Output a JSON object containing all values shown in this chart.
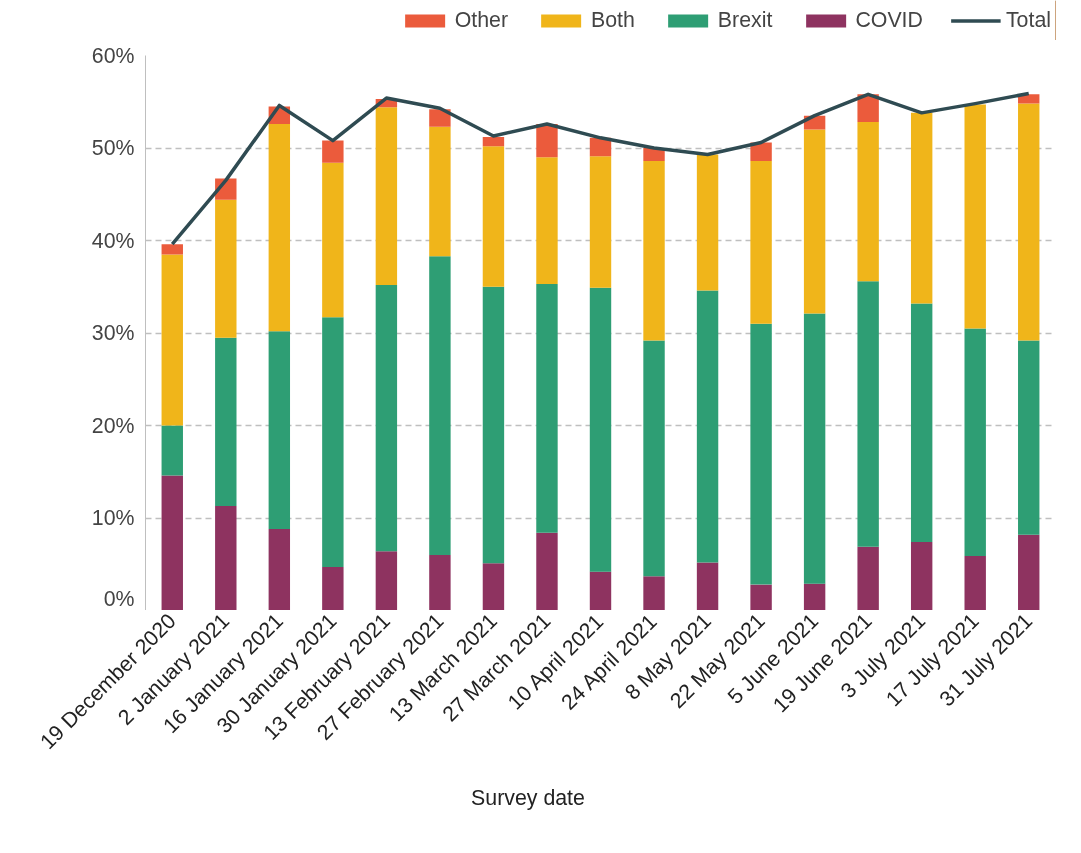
{
  "chart_data": {
    "type": "bar",
    "stacked": true,
    "xlabel": "Survey date",
    "categories": [
      "19 December 2020",
      "2 January 2021",
      "16 January 2021",
      "30 January 2021",
      "13 February 2021",
      "27 February 2021",
      "13 March 2021",
      "27 March 2021",
      "10 April 2021",
      "24 April 2021",
      "8 May 2021",
      "22 May 2021",
      "5 June 2021",
      "19 June 2021",
      "3 July 2021",
      "17 July 2021",
      "31 July 2021"
    ],
    "series": [
      {
        "name": "COVID",
        "color": "#8e3360",
        "values": [
          14.6,
          11.3,
          8.8,
          4.7,
          6.4,
          6.0,
          5.1,
          8.4,
          4.2,
          3.7,
          5.2,
          2.8,
          2.9,
          6.9,
          7.4,
          5.9,
          8.2
        ]
      },
      {
        "name": "Brexit",
        "color": "#2e9e74",
        "values": [
          5.4,
          18.2,
          21.4,
          27.0,
          28.8,
          32.3,
          29.9,
          26.9,
          30.7,
          25.5,
          29.4,
          28.2,
          29.2,
          28.7,
          25.8,
          24.6,
          21.0
        ]
      },
      {
        "name": "Both",
        "color": "#f0b51a",
        "values": [
          18.5,
          14.9,
          22.4,
          16.7,
          19.2,
          14.0,
          15.2,
          13.7,
          14.2,
          19.4,
          14.7,
          17.6,
          19.9,
          17.2,
          20.6,
          24.2,
          25.6
        ]
      },
      {
        "name": "Other",
        "color": "#eb5b3c",
        "values": [
          1.1,
          2.3,
          1.9,
          2.4,
          0.9,
          1.9,
          1.0,
          3.6,
          2.0,
          1.4,
          0,
          2.0,
          1.5,
          3.0,
          0,
          0,
          1.0
        ]
      },
      {
        "name": "Total",
        "type": "line",
        "color": "#2f4b52",
        "values": [
          39.6,
          46.5,
          54.6,
          50.8,
          55.4,
          54.3,
          51.3,
          52.6,
          51.1,
          50.0,
          49.3,
          50.6,
          53.5,
          55.8,
          53.8,
          54.8,
          55.9
        ]
      }
    ],
    "ylim": [
      0,
      60
    ],
    "yticks": [
      {
        "value": 0,
        "label": "0%"
      },
      {
        "value": 10,
        "label": "10%"
      },
      {
        "value": 20,
        "label": "20%"
      },
      {
        "value": 30,
        "label": "30%"
      },
      {
        "value": 40,
        "label": "40%"
      },
      {
        "value": 50,
        "label": "50%"
      },
      {
        "value": 60,
        "label": "60%"
      }
    ],
    "grid": "y",
    "legend": "top",
    "line_style": "solid",
    "marker": "none"
  }
}
